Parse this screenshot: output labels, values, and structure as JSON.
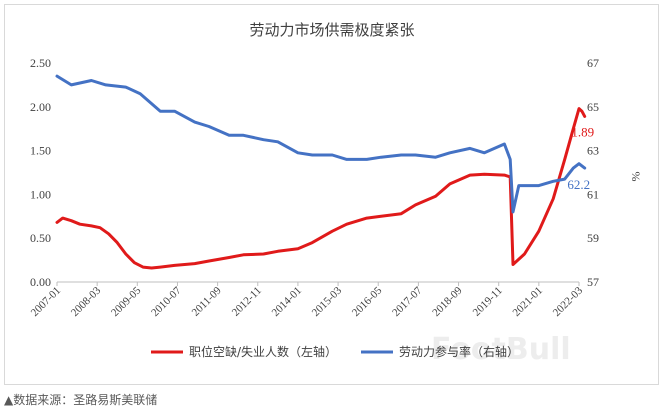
{
  "chart_data": {
    "type": "line",
    "title": "劳动力市场供需极度紧张",
    "left_axis": {
      "ticks": [
        "0.00",
        "0.50",
        "1.00",
        "1.50",
        "2.00",
        "2.50"
      ],
      "ylim": [
        0,
        2.5
      ]
    },
    "right_axis": {
      "ticks": [
        "57",
        "59",
        "61",
        "63",
        "65",
        "67"
      ],
      "ylim": [
        57,
        67
      ],
      "unit": "%"
    },
    "x_ticks": [
      "2007-01",
      "2008-03",
      "2009-05",
      "2010-07",
      "2011-09",
      "2012-11",
      "2014-01",
      "2015-03",
      "2016-05",
      "2017-07",
      "2018-09",
      "2019-11",
      "2021-01",
      "2022-03"
    ],
    "series": [
      {
        "name": "职位空缺/失业人数（左轴）",
        "axis": "left",
        "color": "#e01a1a",
        "end_label": "1.89",
        "points": [
          [
            "2007-01",
            0.68
          ],
          [
            "2007-03",
            0.73
          ],
          [
            "2007-06",
            0.7
          ],
          [
            "2007-09",
            0.66
          ],
          [
            "2008-01",
            0.64
          ],
          [
            "2008-04",
            0.62
          ],
          [
            "2008-07",
            0.55
          ],
          [
            "2008-10",
            0.45
          ],
          [
            "2009-01",
            0.32
          ],
          [
            "2009-04",
            0.22
          ],
          [
            "2009-07",
            0.17
          ],
          [
            "2009-10",
            0.16
          ],
          [
            "2010-01",
            0.17
          ],
          [
            "2010-06",
            0.19
          ],
          [
            "2011-01",
            0.21
          ],
          [
            "2011-06",
            0.24
          ],
          [
            "2012-01",
            0.28
          ],
          [
            "2012-06",
            0.31
          ],
          [
            "2013-01",
            0.32
          ],
          [
            "2013-06",
            0.35
          ],
          [
            "2014-01",
            0.38
          ],
          [
            "2014-06",
            0.45
          ],
          [
            "2015-01",
            0.58
          ],
          [
            "2015-06",
            0.66
          ],
          [
            "2016-01",
            0.73
          ],
          [
            "2016-06",
            0.75
          ],
          [
            "2017-01",
            0.78
          ],
          [
            "2017-06",
            0.88
          ],
          [
            "2018-01",
            0.98
          ],
          [
            "2018-06",
            1.12
          ],
          [
            "2019-01",
            1.22
          ],
          [
            "2019-06",
            1.23
          ],
          [
            "2020-01",
            1.22
          ],
          [
            "2020-03",
            1.2
          ],
          [
            "2020-04",
            0.2
          ],
          [
            "2020-08",
            0.32
          ],
          [
            "2021-01",
            0.58
          ],
          [
            "2021-06",
            0.95
          ],
          [
            "2021-10",
            1.4
          ],
          [
            "2022-01",
            1.75
          ],
          [
            "2022-03",
            1.98
          ],
          [
            "2022-04",
            1.95
          ],
          [
            "2022-05",
            1.89
          ]
        ]
      },
      {
        "name": "劳动力参与率（右轴）",
        "axis": "right",
        "color": "#4472c4",
        "end_label": "62.2",
        "points": [
          [
            "2007-01",
            66.4
          ],
          [
            "2007-06",
            66.0
          ],
          [
            "2008-01",
            66.2
          ],
          [
            "2008-06",
            66.0
          ],
          [
            "2009-01",
            65.9
          ],
          [
            "2009-06",
            65.6
          ],
          [
            "2010-01",
            64.8
          ],
          [
            "2010-06",
            64.8
          ],
          [
            "2011-01",
            64.3
          ],
          [
            "2011-06",
            64.1
          ],
          [
            "2012-01",
            63.7
          ],
          [
            "2012-06",
            63.7
          ],
          [
            "2013-01",
            63.5
          ],
          [
            "2013-06",
            63.4
          ],
          [
            "2014-01",
            62.9
          ],
          [
            "2014-06",
            62.8
          ],
          [
            "2015-01",
            62.8
          ],
          [
            "2015-06",
            62.6
          ],
          [
            "2016-01",
            62.6
          ],
          [
            "2016-06",
            62.7
          ],
          [
            "2017-01",
            62.8
          ],
          [
            "2017-06",
            62.8
          ],
          [
            "2018-01",
            62.7
          ],
          [
            "2018-06",
            62.9
          ],
          [
            "2019-01",
            63.1
          ],
          [
            "2019-06",
            62.9
          ],
          [
            "2020-01",
            63.3
          ],
          [
            "2020-03",
            62.6
          ],
          [
            "2020-04",
            60.2
          ],
          [
            "2020-06",
            61.4
          ],
          [
            "2021-01",
            61.4
          ],
          [
            "2021-06",
            61.6
          ],
          [
            "2021-10",
            61.7
          ],
          [
            "2022-01",
            62.2
          ],
          [
            "2022-03",
            62.4
          ],
          [
            "2022-05",
            62.2
          ]
        ]
      }
    ],
    "legend_position": "bottom",
    "grid": false
  },
  "watermark": "FootBull",
  "source_note": "▲数据来源：圣路易斯美联储"
}
